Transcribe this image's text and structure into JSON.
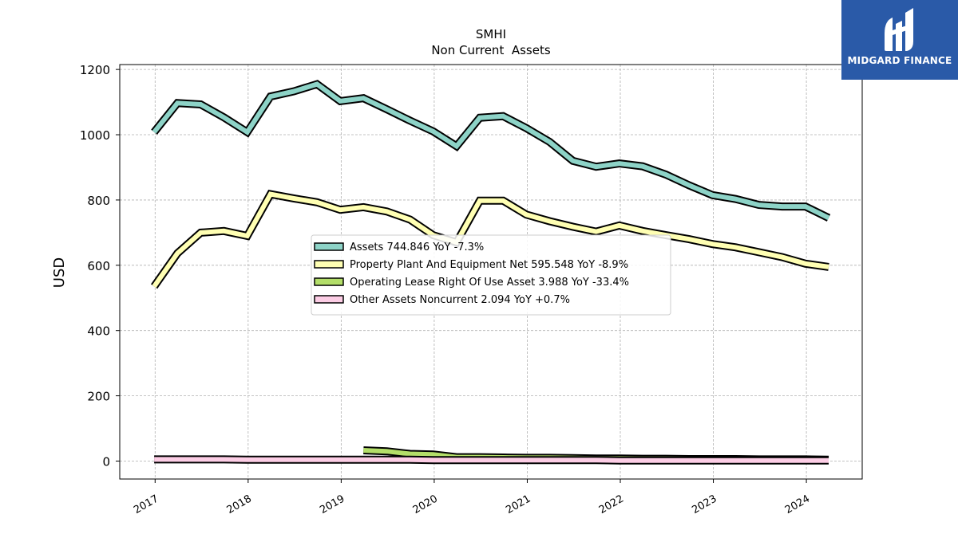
{
  "chart_data": {
    "type": "line",
    "title": "SMHI",
    "subtitle": "Non Current  Assets",
    "ylabel": "USD",
    "xlabel": "",
    "ylim": [
      -55,
      1215
    ],
    "xlim": [
      2016.62,
      2024.6
    ],
    "yticks": [
      0,
      200,
      400,
      600,
      800,
      1000,
      1200
    ],
    "xticks": [
      2017,
      2018,
      2019,
      2020,
      2021,
      2022,
      2023,
      2024
    ],
    "grid": true,
    "legend_position": "center",
    "series": [
      {
        "name": "Assets  744.846 YoY -7.3%",
        "color": "#8dd3c7",
        "x": [
          2016.99,
          2017.24,
          2017.49,
          2017.74,
          2017.99,
          2018.24,
          2018.49,
          2018.74,
          2018.99,
          2019.24,
          2019.49,
          2019.74,
          2019.99,
          2020.24,
          2020.49,
          2020.74,
          2020.99,
          2021.24,
          2021.49,
          2021.74,
          2021.99,
          2022.24,
          2022.49,
          2022.74,
          2022.99,
          2023.24,
          2023.49,
          2023.74,
          2023.99,
          2024.24
        ],
        "values": [
          1008,
          1097,
          1093,
          1053,
          1008,
          1117,
          1133,
          1155,
          1103,
          1112,
          1078,
          1043,
          1010,
          965,
          1052,
          1057,
          1020,
          978,
          920,
          902,
          912,
          903,
          878,
          845,
          815,
          803,
          785,
          780,
          780,
          745
        ]
      },
      {
        "name": "Property Plant And Equipment Net  595.548 YoY -8.9%",
        "color": "#ffffb3",
        "x": [
          2016.99,
          2017.24,
          2017.49,
          2017.74,
          2017.99,
          2018.24,
          2018.49,
          2018.74,
          2018.99,
          2019.24,
          2019.49,
          2019.74,
          2019.99,
          2020.24,
          2020.49,
          2020.74,
          2020.99,
          2021.24,
          2021.49,
          2021.74,
          2021.99,
          2022.24,
          2022.49,
          2022.74,
          2022.99,
          2023.24,
          2023.49,
          2023.74,
          2023.99,
          2024.24
        ],
        "values": [
          535,
          637,
          700,
          705,
          690,
          818,
          805,
          793,
          770,
          778,
          765,
          740,
          692,
          670,
          798,
          798,
          755,
          735,
          718,
          703,
          722,
          705,
          692,
          680,
          665,
          655,
          640,
          625,
          605,
          595
        ]
      },
      {
        "name": "Operating Lease Right Of Use Asset  3.988 YoY -33.4%",
        "color": "#b3de69",
        "x": [
          2019.24,
          2019.49,
          2019.74,
          2019.99,
          2020.24,
          2020.49,
          2020.74,
          2020.99,
          2021.24,
          2021.49,
          2021.74,
          2021.99,
          2022.24,
          2022.49,
          2022.74,
          2022.99,
          2023.24,
          2023.49,
          2023.74,
          2023.99,
          2024.24
        ],
        "values": [
          33,
          30,
          22,
          20,
          12,
          12,
          11,
          10,
          10,
          9,
          8,
          8,
          7,
          7,
          6,
          6,
          6,
          5,
          5,
          5,
          4
        ]
      },
      {
        "name": "Other Assets Noncurrent  2.094 YoY +0.7%",
        "color": "#fccde5",
        "x": [
          2016.99,
          2017.24,
          2017.49,
          2017.74,
          2017.99,
          2018.24,
          2018.49,
          2018.74,
          2018.99,
          2019.24,
          2019.49,
          2019.74,
          2019.99,
          2020.24,
          2020.49,
          2020.74,
          2020.99,
          2021.24,
          2021.49,
          2021.74,
          2021.99,
          2022.24,
          2022.49,
          2022.74,
          2022.99,
          2023.24,
          2023.49,
          2023.74,
          2023.99,
          2024.24
        ],
        "values": [
          5,
          5,
          5,
          5,
          4,
          4,
          4,
          4,
          4,
          4,
          4,
          4,
          3,
          3,
          3,
          3,
          3,
          3,
          3,
          3,
          2,
          2,
          2,
          2,
          2,
          2,
          2,
          2,
          2,
          2
        ]
      }
    ]
  },
  "logo": {
    "text": "MIDGARD FINANCE",
    "color": "#2a5aa8"
  }
}
